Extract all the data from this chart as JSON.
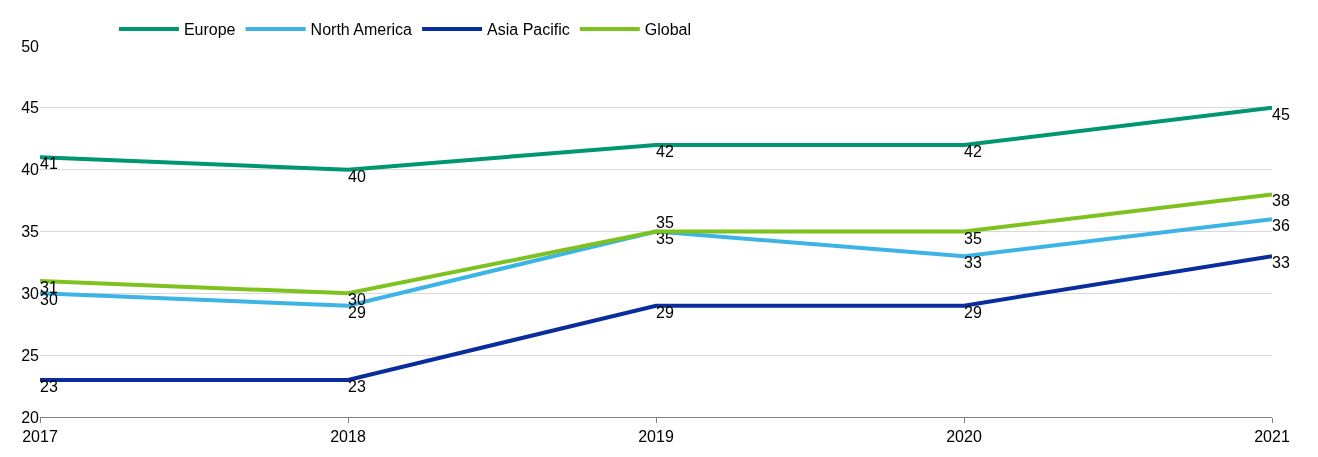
{
  "chart_data": {
    "type": "line",
    "x": [
      2017,
      2018,
      2019,
      2020,
      2021
    ],
    "series": [
      {
        "name": "Europe",
        "color": "#00966f",
        "values": [
          41,
          40,
          42,
          42,
          45
        ]
      },
      {
        "name": "North America",
        "color": "#3cb4e5",
        "values": [
          30,
          29,
          35,
          33,
          36
        ]
      },
      {
        "name": "Asia Pacific",
        "color": "#0a2d9e",
        "values": [
          23,
          23,
          29,
          29,
          33
        ]
      },
      {
        "name": "Global",
        "color": "#7dc21e",
        "values": [
          31,
          30,
          35,
          35,
          38
        ]
      }
    ],
    "xlim": [
      2017,
      2021
    ],
    "xticks": [
      2017,
      2018,
      2019,
      2020,
      2021
    ],
    "ylim": [
      20,
      50
    ],
    "yticks": [
      20,
      25,
      30,
      35,
      40,
      45,
      50
    ],
    "grid": "y",
    "legend": "top",
    "marker": "none",
    "line_style": "solid",
    "data_labels": true
  }
}
